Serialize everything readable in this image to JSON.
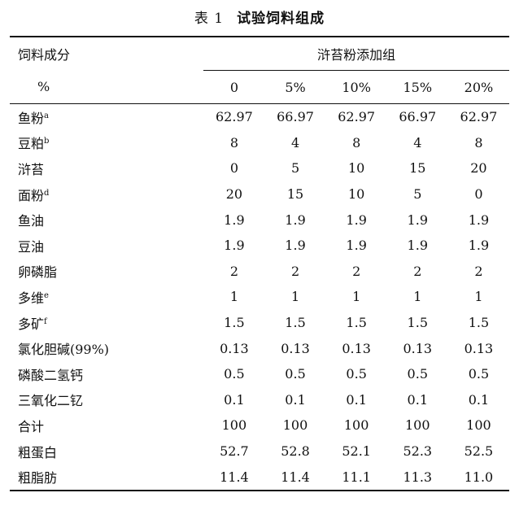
{
  "caption": {
    "number": "表 1",
    "title": "试验饲料组成"
  },
  "header": {
    "ingredient_label": "饲料成分",
    "unit_label": "%",
    "group_label": "浒苔粉添加组",
    "doses": [
      "0",
      "5%",
      "10%",
      "15%",
      "20%"
    ]
  },
  "rows": [
    {
      "name": "鱼粉",
      "sup": "a",
      "values": [
        "62.97",
        "66.97",
        "62.97",
        "66.97",
        "62.97"
      ]
    },
    {
      "name": "豆粕",
      "sup": "b",
      "values": [
        "8",
        "4",
        "8",
        "4",
        "8"
      ]
    },
    {
      "name": "浒苔",
      "sup": "",
      "values": [
        "0",
        "5",
        "10",
        "15",
        "20"
      ]
    },
    {
      "name": "面粉",
      "sup": "d",
      "values": [
        "20",
        "15",
        "10",
        "5",
        "0"
      ]
    },
    {
      "name": "鱼油",
      "sup": "",
      "values": [
        "1.9",
        "1.9",
        "1.9",
        "1.9",
        "1.9"
      ]
    },
    {
      "name": "豆油",
      "sup": "",
      "values": [
        "1.9",
        "1.9",
        "1.9",
        "1.9",
        "1.9"
      ]
    },
    {
      "name": "卵磷脂",
      "sup": "",
      "values": [
        "2",
        "2",
        "2",
        "2",
        "2"
      ]
    },
    {
      "name": "多维",
      "sup": "e",
      "values": [
        "1",
        "1",
        "1",
        "1",
        "1"
      ]
    },
    {
      "name": "多矿",
      "sup": "f",
      "values": [
        "1.5",
        "1.5",
        "1.5",
        "1.5",
        "1.5"
      ]
    },
    {
      "name": "氯化胆碱(99%)",
      "sup": "",
      "values": [
        "0.13",
        "0.13",
        "0.13",
        "0.13",
        "0.13"
      ]
    },
    {
      "name": "磷酸二氢钙",
      "sup": "",
      "values": [
        "0.5",
        "0.5",
        "0.5",
        "0.5",
        "0.5"
      ]
    },
    {
      "name": "三氧化二钇",
      "sup": "",
      "values": [
        "0.1",
        "0.1",
        "0.1",
        "0.1",
        "0.1"
      ]
    },
    {
      "name": "合计",
      "sup": "",
      "values": [
        "100",
        "100",
        "100",
        "100",
        "100"
      ]
    },
    {
      "name": "粗蛋白",
      "sup": "",
      "values": [
        "52.7",
        "52.8",
        "52.1",
        "52.3",
        "52.5"
      ]
    },
    {
      "name": "粗脂肪",
      "sup": "",
      "values": [
        "11.4",
        "11.4",
        "11.1",
        "11.3",
        "11.0"
      ]
    }
  ]
}
